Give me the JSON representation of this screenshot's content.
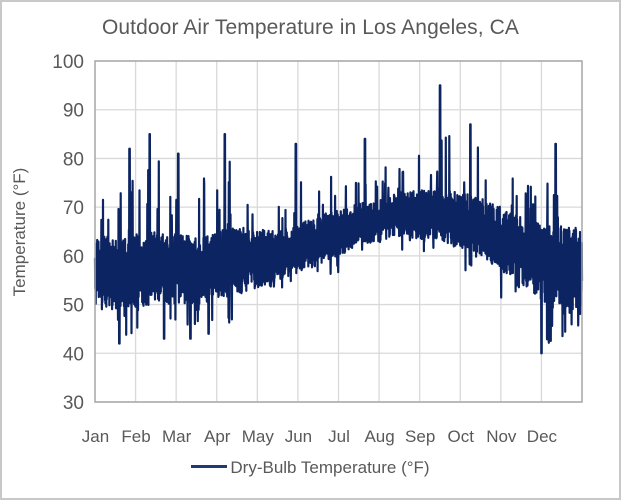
{
  "chart_data": {
    "type": "line",
    "title": "Outdoor Air Temperature in Los Angeles, CA",
    "xlabel": "",
    "ylabel": "Temperature (°F)",
    "ylim": [
      30,
      100
    ],
    "yticks": [
      30,
      40,
      50,
      60,
      70,
      80,
      90,
      100
    ],
    "xlim": [
      0,
      12
    ],
    "x_tick_labels": [
      "Jan",
      "Feb",
      "Mar",
      "Apr",
      "May",
      "Jun",
      "Jul",
      "Aug",
      "Sep",
      "Oct",
      "Nov",
      "Dec"
    ],
    "grid": true,
    "legend": {
      "position": "bottom",
      "entries": [
        "Dry-Bulb Temperature (°F)"
      ]
    },
    "series": [
      {
        "name": "Dry-Bulb Temperature (°F)",
        "color": "#0c2461",
        "resolution": "hourly",
        "monthly_summary": [
          {
            "month": "Jan",
            "min": 42,
            "max": 82,
            "typical_low": 49,
            "typical_high": 64
          },
          {
            "month": "Feb",
            "min": 43,
            "max": 85,
            "typical_low": 50,
            "typical_high": 65
          },
          {
            "month": "Mar",
            "min": 43,
            "max": 81,
            "typical_low": 50,
            "typical_high": 64
          },
          {
            "month": "Apr",
            "min": 44,
            "max": 85,
            "typical_low": 52,
            "typical_high": 66
          },
          {
            "month": "May",
            "min": 53,
            "max": 75,
            "typical_low": 55,
            "typical_high": 65
          },
          {
            "month": "Jun",
            "min": 55,
            "max": 83,
            "typical_low": 58,
            "typical_high": 68
          },
          {
            "month": "Jul",
            "min": 59,
            "max": 77,
            "typical_low": 62,
            "typical_high": 71
          },
          {
            "month": "Aug",
            "min": 59,
            "max": 84,
            "typical_low": 64,
            "typical_high": 73
          },
          {
            "month": "Sep",
            "min": 60,
            "max": 95,
            "typical_low": 63,
            "typical_high": 74
          },
          {
            "month": "Oct",
            "min": 56,
            "max": 87,
            "typical_low": 60,
            "typical_high": 72
          },
          {
            "month": "Nov",
            "min": 50,
            "max": 80,
            "typical_low": 54,
            "typical_high": 68
          },
          {
            "month": "Dec",
            "min": 40,
            "max": 83,
            "typical_low": 48,
            "typical_high": 66
          }
        ],
        "peaks": [
          {
            "x": 0.85,
            "y": 82
          },
          {
            "x": 1.35,
            "y": 85
          },
          {
            "x": 2.05,
            "y": 81
          },
          {
            "x": 3.2,
            "y": 85
          },
          {
            "x": 4.95,
            "y": 83
          },
          {
            "x": 6.65,
            "y": 84
          },
          {
            "x": 8.5,
            "y": 95
          },
          {
            "x": 9.25,
            "y": 87
          },
          {
            "x": 11.35,
            "y": 83
          }
        ],
        "troughs": [
          {
            "x": 0.6,
            "y": 42
          },
          {
            "x": 1.7,
            "y": 43
          },
          {
            "x": 2.35,
            "y": 43
          },
          {
            "x": 2.8,
            "y": 44
          },
          {
            "x": 11.0,
            "y": 40
          }
        ]
      }
    ]
  }
}
